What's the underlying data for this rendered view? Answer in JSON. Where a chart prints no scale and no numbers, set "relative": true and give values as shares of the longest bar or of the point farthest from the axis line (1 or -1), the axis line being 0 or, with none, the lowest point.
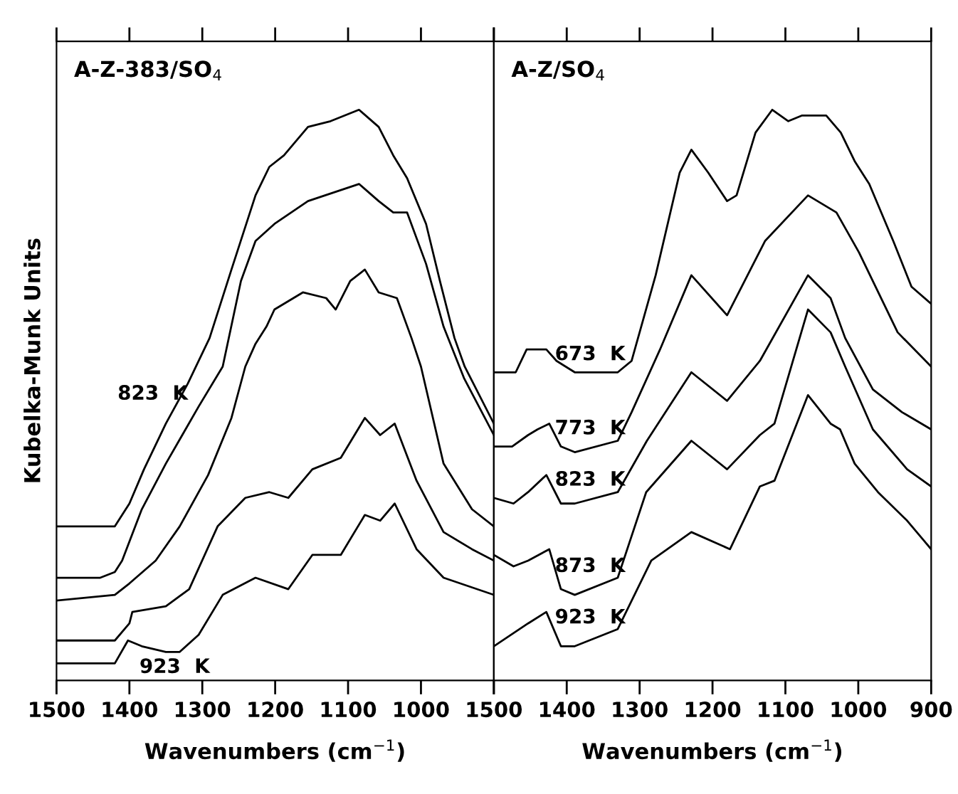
{
  "chart_data": [
    {
      "type": "line",
      "title": "A-Z-383/SO$_{4}$",
      "xlabel": "Wavenumbers (cm$^{−1}$)",
      "ylabel": "Kubelka-Munk Units",
      "relative": true,
      "xlim": [
        1500,
        900
      ],
      "xticks": [
        1500,
        1400,
        1300,
        1200,
        1100,
        1000,
        {
          "value": 900,
          "label": null
        }
      ],
      "grid": false,
      "legend": false,
      "series": [
        {
          "name": "823  K",
          "color": "#000000",
          "x": [
            1500,
            1450,
            1420,
            1400,
            1380,
            1350,
            1320,
            1290,
            1260,
            1227,
            1208,
            1188,
            1155,
            1124,
            1085,
            1058,
            1038,
            1019,
            993,
            974,
            954,
            940,
            900
          ],
          "values": [
            0.27,
            0.27,
            0.27,
            0.31,
            0.37,
            0.45,
            0.52,
            0.6,
            0.72,
            0.85,
            0.9,
            0.92,
            0.97,
            0.98,
            1.0,
            0.97,
            0.92,
            0.88,
            0.8,
            0.7,
            0.6,
            0.55,
            0.45
          ]
        },
        {
          "color": "#000000",
          "x": [
            1500,
            1440,
            1420,
            1410,
            1383,
            1350,
            1305,
            1272,
            1247,
            1227,
            1201,
            1155,
            1085,
            1058,
            1038,
            1019,
            993,
            969,
            941,
            900
          ],
          "values": [
            0.18,
            0.18,
            0.19,
            0.21,
            0.3,
            0.38,
            0.48,
            0.55,
            0.7,
            0.77,
            0.8,
            0.84,
            0.87,
            0.84,
            0.82,
            0.82,
            0.73,
            0.62,
            0.53,
            0.43
          ]
        },
        {
          "color": "#000000",
          "x": [
            1500,
            1420,
            1400,
            1364,
            1331,
            1292,
            1260,
            1241,
            1227,
            1212,
            1201,
            1162,
            1130,
            1117,
            1097,
            1077,
            1058,
            1033,
            1013,
            1000,
            969,
            930,
            900
          ],
          "values": [
            0.14,
            0.15,
            0.17,
            0.21,
            0.27,
            0.36,
            0.46,
            0.55,
            0.59,
            0.62,
            0.65,
            0.68,
            0.67,
            0.65,
            0.7,
            0.72,
            0.68,
            0.67,
            0.6,
            0.55,
            0.38,
            0.3,
            0.27
          ]
        },
        {
          "color": "#000000",
          "x": [
            1500,
            1420,
            1400,
            1396,
            1350,
            1318,
            1279,
            1241,
            1208,
            1182,
            1149,
            1110,
            1077,
            1056,
            1036,
            1006,
            969,
            930,
            900
          ],
          "values": [
            0.07,
            0.07,
            0.1,
            0.12,
            0.13,
            0.16,
            0.27,
            0.32,
            0.33,
            0.32,
            0.37,
            0.39,
            0.46,
            0.43,
            0.45,
            0.35,
            0.26,
            0.23,
            0.21
          ]
        },
        {
          "name": "923  K",
          "color": "#000000",
          "x": [
            1500,
            1420,
            1402,
            1383,
            1350,
            1331,
            1305,
            1272,
            1227,
            1182,
            1149,
            1110,
            1077,
            1056,
            1036,
            1006,
            969,
            900
          ],
          "values": [
            0.03,
            0.03,
            0.07,
            0.06,
            0.05,
            0.05,
            0.08,
            0.15,
            0.18,
            0.16,
            0.22,
            0.22,
            0.29,
            0.28,
            0.31,
            0.23,
            0.18,
            0.15
          ]
        }
      ]
    },
    {
      "type": "line",
      "title": "A-Z/SO$_{4}$",
      "xlabel": "Wavenumbers (cm$^{−1}$)",
      "relative": true,
      "xlim": [
        1500,
        900
      ],
      "xticks": [
        1500,
        1400,
        1300,
        1200,
        1100,
        1000,
        900
      ],
      "grid": false,
      "legend": false,
      "series": [
        {
          "name": "673  K",
          "color": "#000000",
          "x": [
            1500,
            1470,
            1455,
            1428,
            1414,
            1389,
            1330,
            1311,
            1278,
            1245,
            1229,
            1206,
            1180,
            1167,
            1141,
            1118,
            1096,
            1077,
            1044,
            1024,
            1005,
            985,
            952,
            927,
            900
          ],
          "values": [
            0.54,
            0.54,
            0.58,
            0.58,
            0.56,
            0.54,
            0.54,
            0.56,
            0.71,
            0.89,
            0.93,
            0.89,
            0.84,
            0.85,
            0.96,
            1.0,
            0.98,
            0.99,
            0.99,
            0.96,
            0.91,
            0.87,
            0.77,
            0.69,
            0.66
          ]
        },
        {
          "name": "773  K",
          "color": "#000000",
          "x": [
            1500,
            1475,
            1453,
            1440,
            1424,
            1408,
            1389,
            1330,
            1311,
            1272,
            1229,
            1180,
            1128,
            1069,
            1030,
            999,
            946,
            900
          ],
          "values": [
            0.41,
            0.41,
            0.43,
            0.44,
            0.45,
            0.41,
            0.4,
            0.42,
            0.47,
            0.58,
            0.71,
            0.64,
            0.77,
            0.85,
            0.82,
            0.75,
            0.61,
            0.55
          ]
        },
        {
          "name": "823  K",
          "color": "#000000",
          "x": [
            1500,
            1473,
            1453,
            1428,
            1408,
            1389,
            1330,
            1290,
            1229,
            1180,
            1135,
            1069,
            1038,
            1018,
            980,
            940,
            900
          ],
          "values": [
            0.32,
            0.31,
            0.33,
            0.36,
            0.31,
            0.31,
            0.33,
            0.42,
            0.54,
            0.49,
            0.56,
            0.71,
            0.67,
            0.6,
            0.51,
            0.47,
            0.44
          ]
        },
        {
          "name": "873  K",
          "color": "#000000",
          "x": [
            1500,
            1473,
            1453,
            1424,
            1408,
            1389,
            1330,
            1291,
            1229,
            1180,
            1135,
            1115,
            1069,
            1038,
            1018,
            980,
            933,
            900
          ],
          "values": [
            0.22,
            0.2,
            0.21,
            0.23,
            0.16,
            0.15,
            0.18,
            0.33,
            0.42,
            0.37,
            0.43,
            0.45,
            0.65,
            0.61,
            0.55,
            0.44,
            0.37,
            0.34
          ]
        },
        {
          "name": "923  K",
          "color": "#000000",
          "x": [
            1500,
            1453,
            1428,
            1408,
            1389,
            1330,
            1284,
            1229,
            1176,
            1135,
            1115,
            1069,
            1038,
            1025,
            1005,
            973,
            933,
            900
          ],
          "values": [
            0.06,
            0.1,
            0.12,
            0.06,
            0.06,
            0.09,
            0.21,
            0.26,
            0.23,
            0.34,
            0.35,
            0.5,
            0.45,
            0.44,
            0.38,
            0.33,
            0.28,
            0.23
          ]
        }
      ]
    }
  ]
}
